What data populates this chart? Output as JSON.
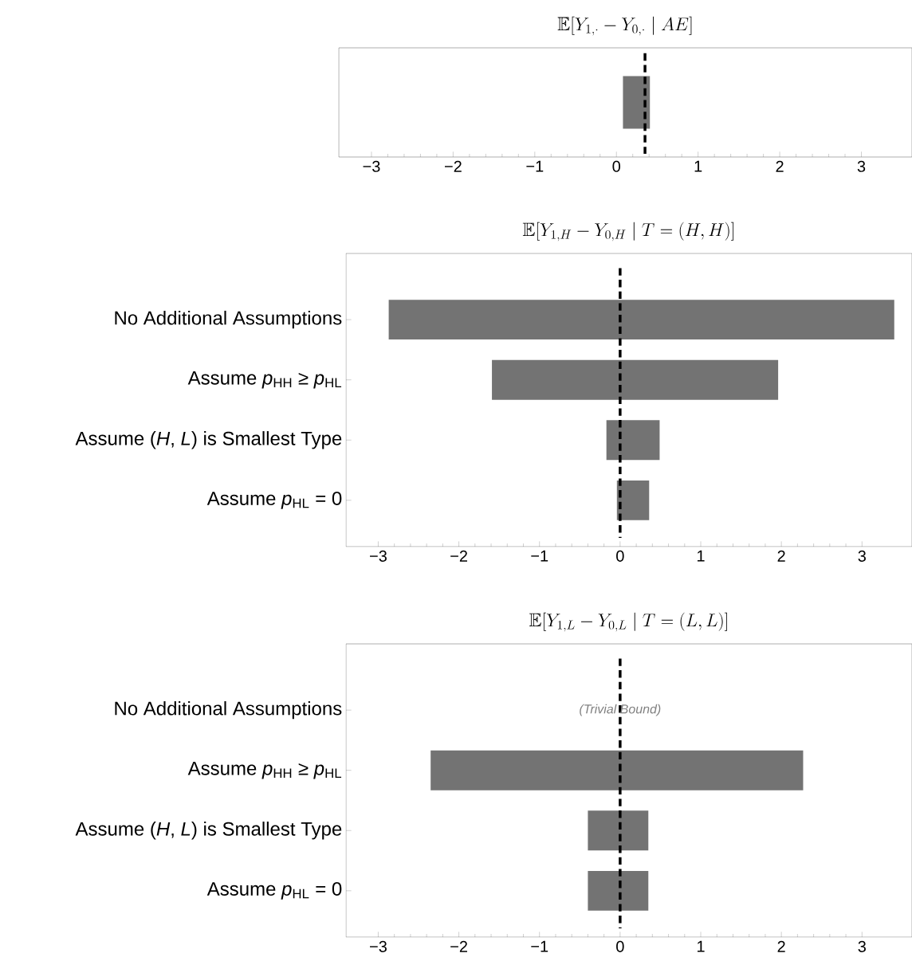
{
  "chart_data": [
    {
      "type": "bar",
      "orientation": "horizontal",
      "title": "\\mathbb{E}[Y_{1,\\cdot} - Y_{0,\\cdot} \\mid AE]",
      "categories": [
        null
      ],
      "base": [
        0.08
      ],
      "values": [
        0.33
      ],
      "color": "#737373",
      "xlim": [
        -3.4,
        3.62
      ],
      "xticks": [
        {
          "value": -3,
          "label": "−3"
        },
        {
          "value": -2,
          "label": "−2"
        },
        {
          "value": -1,
          "label": "−1"
        },
        {
          "value": 0,
          "label": "0"
        },
        {
          "value": 1,
          "label": "1"
        },
        {
          "value": 2,
          "label": "2"
        },
        {
          "value": 3,
          "label": "3"
        }
      ],
      "ref_lines": [
        {
          "axis": "x",
          "value": 0.35,
          "color": "#000000",
          "line_style": "dashed"
        }
      ]
    },
    {
      "type": "bar",
      "orientation": "horizontal",
      "title": "\\mathbb{E}[Y_{1,H} - Y_{0,H} \\mid T = (H,H)]",
      "categories": [
        "No Additional Assumptions",
        "Assume *p*$_{HH}$ ≥ *p*$_{HL}$",
        "Assume (*H*, *L*) is Smallest Type",
        "Assume *p*$_{HL}$ = 0"
      ],
      "base": [
        -2.87,
        -1.59,
        -0.17,
        -0.04
      ],
      "values": [
        6.27,
        3.55,
        0.66,
        0.4
      ],
      "color": "#737373",
      "xlim": [
        -3.4,
        3.62
      ],
      "xticks": [
        {
          "value": -3,
          "label": "−3"
        },
        {
          "value": -2,
          "label": "−2"
        },
        {
          "value": -1,
          "label": "−1"
        },
        {
          "value": 0,
          "label": "0"
        },
        {
          "value": 1,
          "label": "1"
        },
        {
          "value": 2,
          "label": "2"
        },
        {
          "value": 3,
          "label": "3"
        }
      ],
      "ref_lines": [
        {
          "axis": "x",
          "value": 0,
          "color": "#000000",
          "line_style": "dashed"
        }
      ]
    },
    {
      "type": "bar",
      "orientation": "horizontal",
      "title": "\\mathbb{E}[Y_{1,L} - Y_{0,L} \\mid T = (L,L)]",
      "categories": [
        "No Additional Assumptions",
        "Assume *p*$_{HH}$ ≥ *p*$_{HL}$",
        "Assume (*H*, *L*) is Smallest Type",
        "Assume *p*$_{HL}$ = 0"
      ],
      "base": [
        null,
        -2.35,
        -0.4,
        -0.4
      ],
      "values": [
        null,
        4.62,
        0.75,
        0.75
      ],
      "color": "#737373",
      "xlim": [
        -3.4,
        3.62
      ],
      "xticks": [
        {
          "value": -3,
          "label": "−3"
        },
        {
          "value": -2,
          "label": "−2"
        },
        {
          "value": -1,
          "label": "−1"
        },
        {
          "value": 0,
          "label": "0"
        },
        {
          "value": 1,
          "label": "1"
        },
        {
          "value": 2,
          "label": "2"
        },
        {
          "value": 3,
          "label": "3"
        }
      ],
      "ref_lines": [
        {
          "axis": "x",
          "value": 0,
          "color": "#000000",
          "line_style": "dashed"
        }
      ],
      "annotations": [
        {
          "text": "(Trivial Bound)",
          "x": 0,
          "y": "No Additional Assumptions"
        }
      ]
    }
  ]
}
